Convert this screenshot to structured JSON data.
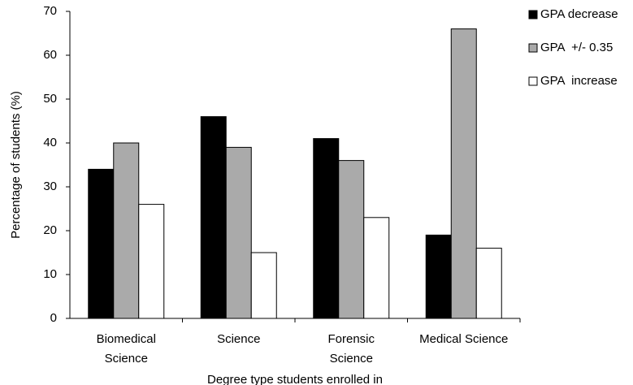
{
  "chart_data": {
    "type": "bar",
    "categories": [
      "Biomedical Science",
      "Science",
      "Forensic Science",
      "Medical Science"
    ],
    "series": [
      {
        "name": "GPA decrease",
        "color": "#000000",
        "values": [
          34,
          46,
          41,
          19
        ]
      },
      {
        "name": "GPA  +/- 0.35",
        "color": "#aaaaaa",
        "values": [
          40,
          39,
          36,
          66
        ]
      },
      {
        "name": "GPA  increase",
        "color": "#ffffff",
        "values": [
          26,
          15,
          23,
          16
        ]
      }
    ],
    "y_label": "Percentage of students (%)",
    "x_label": "Degree type students enrolled in",
    "ylim": [
      0,
      70
    ],
    "yticks": [
      0,
      10,
      20,
      30,
      40,
      50,
      60,
      70
    ],
    "grid": false,
    "legend": "right"
  }
}
